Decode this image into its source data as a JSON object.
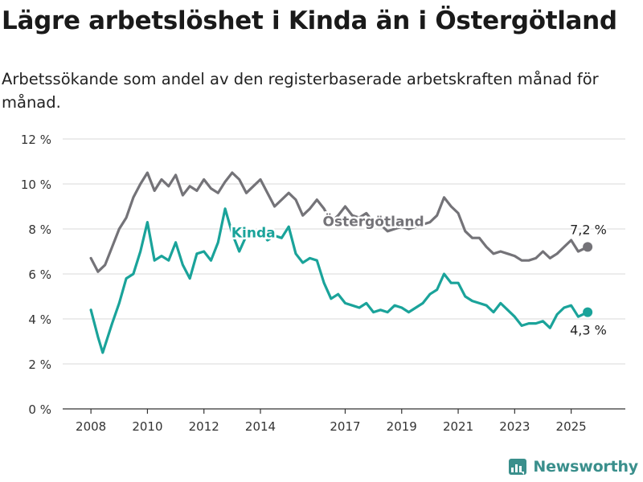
{
  "header": {
    "title": "Lägre arbetslöshet i Kinda än i Östergötland",
    "subtitle": "Arbetssökande som andel av den registerbaserade arbetskraften månad för månad."
  },
  "brand": {
    "name": "Newsworthy"
  },
  "colors": {
    "kinda": "#1aa39a",
    "ostergotland": "#747378",
    "grid": "#d9d9d9",
    "axis": "#333333",
    "brand": "#3a8f8c"
  },
  "chart_data": {
    "type": "line",
    "x_type": "date",
    "xlim": [
      "2007-01",
      "2026-12"
    ],
    "ylim": [
      0,
      12
    ],
    "y_ticks": [
      0,
      2,
      4,
      6,
      8,
      10,
      12
    ],
    "y_tick_labels": [
      "0 %",
      "2 %",
      "4 %",
      "6 %",
      "8 %",
      "10 %",
      "12 %"
    ],
    "x_ticks": [
      "2008-01",
      "2010-01",
      "2012-01",
      "2014-01",
      "2017-01",
      "2019-01",
      "2021-01",
      "2023-01",
      "2025-01"
    ],
    "x_tick_labels": [
      "2008",
      "2010",
      "2012",
      "2014",
      "2017",
      "2019",
      "2021",
      "2023",
      "2025"
    ],
    "grid": "horizontal",
    "series": [
      {
        "name": "Östergötland",
        "color": "#747378",
        "label_at": "2018-01",
        "end_label": "7,2 %",
        "points": [
          [
            "2008-01",
            6.7
          ],
          [
            "2008-04",
            6.1
          ],
          [
            "2008-07",
            6.4
          ],
          [
            "2008-10",
            7.2
          ],
          [
            "2009-01",
            8.0
          ],
          [
            "2009-04",
            8.5
          ],
          [
            "2009-07",
            9.4
          ],
          [
            "2009-10",
            10.0
          ],
          [
            "2010-01",
            10.5
          ],
          [
            "2010-04",
            9.7
          ],
          [
            "2010-07",
            10.2
          ],
          [
            "2010-10",
            9.9
          ],
          [
            "2011-01",
            10.4
          ],
          [
            "2011-04",
            9.5
          ],
          [
            "2011-07",
            9.9
          ],
          [
            "2011-10",
            9.7
          ],
          [
            "2012-01",
            10.2
          ],
          [
            "2012-04",
            9.8
          ],
          [
            "2012-07",
            9.6
          ],
          [
            "2012-10",
            10.1
          ],
          [
            "2013-01",
            10.5
          ],
          [
            "2013-04",
            10.2
          ],
          [
            "2013-07",
            9.6
          ],
          [
            "2013-10",
            9.9
          ],
          [
            "2014-01",
            10.2
          ],
          [
            "2014-04",
            9.6
          ],
          [
            "2014-07",
            9.0
          ],
          [
            "2014-10",
            9.3
          ],
          [
            "2015-01",
            9.6
          ],
          [
            "2015-04",
            9.3
          ],
          [
            "2015-07",
            8.6
          ],
          [
            "2015-10",
            8.9
          ],
          [
            "2016-01",
            9.3
          ],
          [
            "2016-04",
            8.9
          ],
          [
            "2016-07",
            8.3
          ],
          [
            "2016-10",
            8.6
          ],
          [
            "2017-01",
            9.0
          ],
          [
            "2017-04",
            8.6
          ],
          [
            "2017-07",
            8.5
          ],
          [
            "2017-10",
            8.7
          ],
          [
            "2018-01",
            8.3
          ],
          [
            "2018-04",
            8.2
          ],
          [
            "2018-07",
            7.9
          ],
          [
            "2018-10",
            8.0
          ],
          [
            "2019-01",
            8.1
          ],
          [
            "2019-04",
            8.0
          ],
          [
            "2019-07",
            8.1
          ],
          [
            "2019-10",
            8.2
          ],
          [
            "2020-01",
            8.3
          ],
          [
            "2020-04",
            8.6
          ],
          [
            "2020-07",
            9.4
          ],
          [
            "2020-10",
            9.0
          ],
          [
            "2021-01",
            8.7
          ],
          [
            "2021-04",
            7.9
          ],
          [
            "2021-07",
            7.6
          ],
          [
            "2021-10",
            7.6
          ],
          [
            "2022-01",
            7.2
          ],
          [
            "2022-04",
            6.9
          ],
          [
            "2022-07",
            7.0
          ],
          [
            "2022-10",
            6.9
          ],
          [
            "2023-01",
            6.8
          ],
          [
            "2023-04",
            6.6
          ],
          [
            "2023-07",
            6.6
          ],
          [
            "2023-10",
            6.7
          ],
          [
            "2024-01",
            7.0
          ],
          [
            "2024-04",
            6.7
          ],
          [
            "2024-07",
            6.9
          ],
          [
            "2024-10",
            7.2
          ],
          [
            "2025-01",
            7.5
          ],
          [
            "2025-04",
            7.0
          ],
          [
            "2025-08",
            7.2
          ]
        ]
      },
      {
        "name": "Kinda",
        "color": "#1aa39a",
        "label_at": "2013-10",
        "end_label": "4,3 %",
        "points": [
          [
            "2008-01",
            4.4
          ],
          [
            "2008-04",
            3.2
          ],
          [
            "2008-06",
            2.5
          ],
          [
            "2008-10",
            3.8
          ],
          [
            "2009-01",
            4.7
          ],
          [
            "2009-04",
            5.8
          ],
          [
            "2009-07",
            6.0
          ],
          [
            "2009-10",
            7.0
          ],
          [
            "2010-01",
            8.3
          ],
          [
            "2010-04",
            6.6
          ],
          [
            "2010-07",
            6.8
          ],
          [
            "2010-10",
            6.6
          ],
          [
            "2011-01",
            7.4
          ],
          [
            "2011-04",
            6.4
          ],
          [
            "2011-07",
            5.8
          ],
          [
            "2011-10",
            6.9
          ],
          [
            "2012-01",
            7.0
          ],
          [
            "2012-04",
            6.6
          ],
          [
            "2012-07",
            7.4
          ],
          [
            "2012-10",
            8.9
          ],
          [
            "2013-01",
            7.8
          ],
          [
            "2013-04",
            7.0
          ],
          [
            "2013-07",
            7.7
          ],
          [
            "2013-10",
            7.8
          ],
          [
            "2014-01",
            8.0
          ],
          [
            "2014-04",
            7.5
          ],
          [
            "2014-07",
            7.7
          ],
          [
            "2014-10",
            7.6
          ],
          [
            "2015-01",
            8.1
          ],
          [
            "2015-04",
            6.9
          ],
          [
            "2015-07",
            6.5
          ],
          [
            "2015-10",
            6.7
          ],
          [
            "2016-01",
            6.6
          ],
          [
            "2016-04",
            5.6
          ],
          [
            "2016-07",
            4.9
          ],
          [
            "2016-10",
            5.1
          ],
          [
            "2017-01",
            4.7
          ],
          [
            "2017-04",
            4.6
          ],
          [
            "2017-07",
            4.5
          ],
          [
            "2017-10",
            4.7
          ],
          [
            "2018-01",
            4.3
          ],
          [
            "2018-04",
            4.4
          ],
          [
            "2018-07",
            4.3
          ],
          [
            "2018-10",
            4.6
          ],
          [
            "2019-01",
            4.5
          ],
          [
            "2019-04",
            4.3
          ],
          [
            "2019-07",
            4.5
          ],
          [
            "2019-10",
            4.7
          ],
          [
            "2020-01",
            5.1
          ],
          [
            "2020-04",
            5.3
          ],
          [
            "2020-07",
            6.0
          ],
          [
            "2020-10",
            5.6
          ],
          [
            "2021-01",
            5.6
          ],
          [
            "2021-04",
            5.0
          ],
          [
            "2021-07",
            4.8
          ],
          [
            "2021-10",
            4.7
          ],
          [
            "2022-01",
            4.6
          ],
          [
            "2022-04",
            4.3
          ],
          [
            "2022-07",
            4.7
          ],
          [
            "2022-10",
            4.4
          ],
          [
            "2023-01",
            4.1
          ],
          [
            "2023-04",
            3.7
          ],
          [
            "2023-07",
            3.8
          ],
          [
            "2023-10",
            3.8
          ],
          [
            "2024-01",
            3.9
          ],
          [
            "2024-04",
            3.6
          ],
          [
            "2024-07",
            4.2
          ],
          [
            "2024-10",
            4.5
          ],
          [
            "2025-01",
            4.6
          ],
          [
            "2025-04",
            4.1
          ],
          [
            "2025-08",
            4.3
          ]
        ]
      }
    ]
  }
}
